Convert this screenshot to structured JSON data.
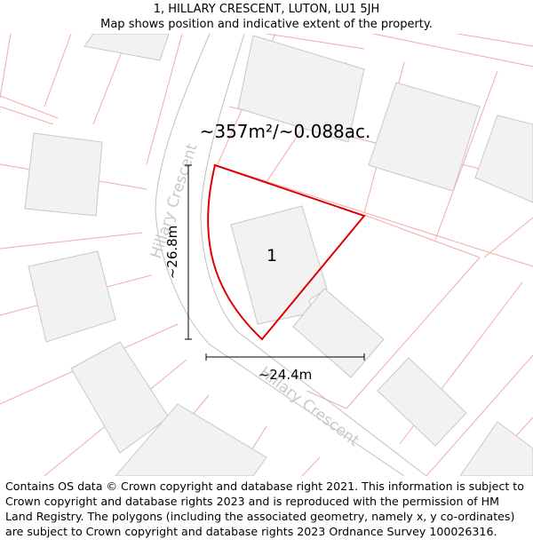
{
  "header": {
    "title": "1, HILLARY CRESCENT, LUTON, LU1 5JH",
    "subtitle": "Map shows position and indicative extent of the property."
  },
  "map": {
    "area_label": "~357m²/~0.088ac.",
    "plot_number": "1",
    "street_label_top": "Hillary Crescent",
    "street_label_bottom": "Hillary Crescent",
    "height_label": "~26.8m",
    "width_label": "~24.4m",
    "colors": {
      "boundary": "#e00000",
      "parcel_lines": "#f4a9a9",
      "building_fill": "#f2f2f2",
      "building_stroke": "#c8c8c8",
      "road_edge": "#c0c0c0",
      "street_text": "#c8c8c8"
    }
  },
  "footer": {
    "copyright": "Contains OS data © Crown copyright and database right 2021. This information is subject to Crown copyright and database rights 2023 and is reproduced with the permission of HM Land Registry. The polygons (including the associated geometry, namely x, y co-ordinates) are subject to Crown copyright and database rights 2023 Ordnance Survey 100026316."
  }
}
